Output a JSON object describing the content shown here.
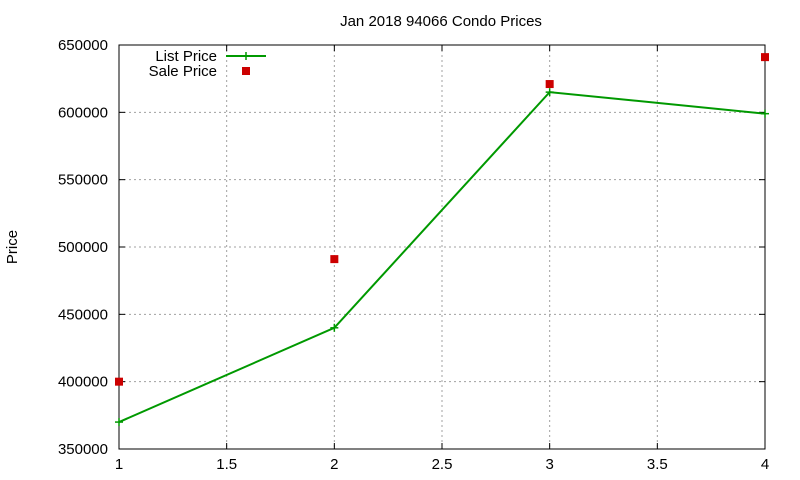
{
  "chart_data": {
    "type": "line",
    "title": "Jan 2018 94066 Condo Prices",
    "xlabel": "",
    "ylabel": "Price",
    "xlim": [
      1,
      4
    ],
    "ylim": [
      350000,
      650000
    ],
    "x_ticks": [
      "1",
      "1.5",
      "2",
      "2.5",
      "3",
      "3.5",
      "4"
    ],
    "y_ticks": [
      "350000",
      "400000",
      "450000",
      "500000",
      "550000",
      "600000",
      "650000"
    ],
    "grid": true,
    "legend_position": "top-left",
    "series": [
      {
        "name": "List Price",
        "style": "line-with-plus-markers",
        "color": "#009900",
        "x": [
          1,
          2,
          3,
          4
        ],
        "y": [
          370000,
          440000,
          615000,
          599000
        ]
      },
      {
        "name": "Sale Price",
        "style": "square-markers",
        "color": "#cc0000",
        "x": [
          1,
          2,
          3,
          4
        ],
        "y": [
          400000,
          491000,
          621000,
          641000
        ]
      }
    ]
  }
}
